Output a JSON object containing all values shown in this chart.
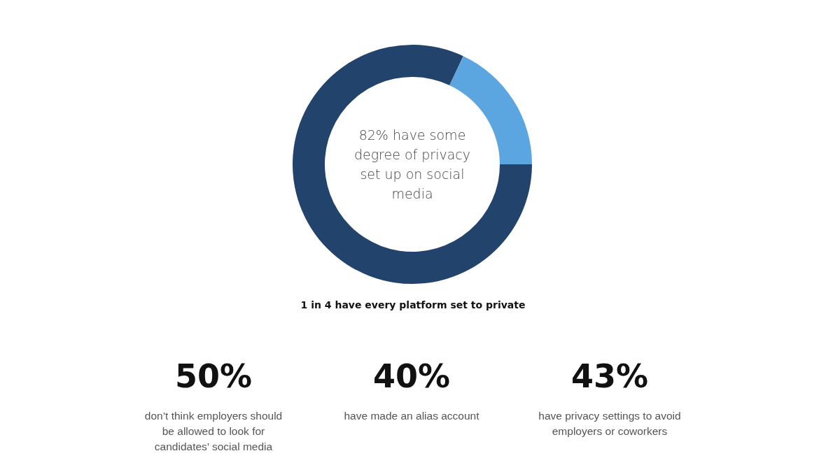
{
  "chart_data": [
    {
      "type": "donut",
      "title": "82% have some degree of privacy set up on social media",
      "categories": [
        null,
        null
      ],
      "values": [
        82,
        18
      ],
      "colors": [
        "#22436b",
        "#5ba5e1"
      ],
      "annotations": [
        "1 in 4 have every platform set to private"
      ]
    },
    {
      "type": "other",
      "title": "50%",
      "subtitle": "don’t think employers should be allowed to look for candidates’ social media"
    },
    {
      "type": "other",
      "title": "40%",
      "subtitle": "have made an alias account"
    },
    {
      "type": "other",
      "title": "43%",
      "subtitle": "have privacy settings to avoid employers or coworkers"
    }
  ]
}
